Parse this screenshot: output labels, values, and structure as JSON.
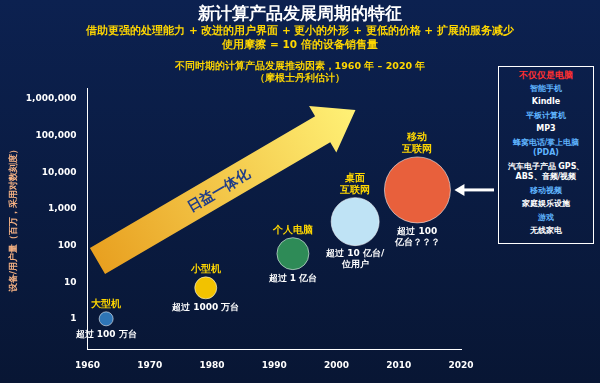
{
  "title": "新计算产品发展周期的特征",
  "subtitle": [
    "借助更强的处理能力 + 改进的用户界面 + 更小的外形 + 更低的价格 + 扩展的服务减少",
    "使用摩擦 = 10 倍的设备销售量"
  ],
  "chart_data": {
    "type": "bubble",
    "title": "不同时期的计算产品发展推动因素，1960 年 – 2020 年",
    "subtitle": "（摩根士丹利估计）",
    "y_label": "设备/用户量（百万，采用对数刻度）",
    "x": [
      1963,
      1979,
      1993,
      2003,
      2013
    ],
    "values": [
      1,
      7,
      60,
      450,
      3300
    ],
    "sizes": [
      7,
      11,
      16,
      24,
      33
    ],
    "point_labels": [
      "大型机",
      "小型机",
      "个人电脑",
      "桌面\n互联网",
      "移动\n互联网"
    ],
    "annotations": [
      "超过 100 万台",
      "超过 1000 万台",
      "超过 1 亿台",
      "超过 10 亿台/\n位用户",
      "超过 100\n亿台？？？"
    ],
    "colors": [
      "#2e75b6",
      "#f2c200",
      "#2e8b57",
      "#bfe3f5",
      "#e8603c"
    ],
    "arrow_label": "日益一体化",
    "xlim": [
      1960,
      2020
    ],
    "xticks": [
      1960,
      1970,
      1980,
      1990,
      2000,
      2010,
      2020
    ],
    "ylim": [
      0.15,
      2000000
    ],
    "yticks": [
      1,
      10,
      100,
      {
        "value": 1000,
        "label": "1,000"
      },
      {
        "value": 10000,
        "label": "10,000"
      },
      {
        "value": 100000,
        "label": "100,000"
      },
      {
        "value": 1000000,
        "label": "1,000,000"
      }
    ],
    "log": "y",
    "grid": false
  },
  "sidebar": {
    "title": "不仅仅是电脑",
    "items": [
      {
        "text": "智能手机",
        "color": "#5fb4ff"
      },
      {
        "text": "Kindle",
        "color": "#ffffff"
      },
      {
        "text": "平板计算机",
        "color": "#5fb4ff"
      },
      {
        "text": "MP3",
        "color": "#ffffff"
      },
      {
        "text": "蜂窝电话/掌上电脑 (PDA)",
        "color": "#5fb4ff"
      },
      {
        "text": "汽车电子产品 GPS、ABS、音频/视频",
        "color": "#ffffff"
      },
      {
        "text": "移动视频",
        "color": "#5fb4ff"
      },
      {
        "text": "家庭娱乐设施",
        "color": "#ffffff"
      },
      {
        "text": "游戏",
        "color": "#5fb4ff"
      },
      {
        "text": "无线家电",
        "color": "#ffffff"
      }
    ]
  }
}
